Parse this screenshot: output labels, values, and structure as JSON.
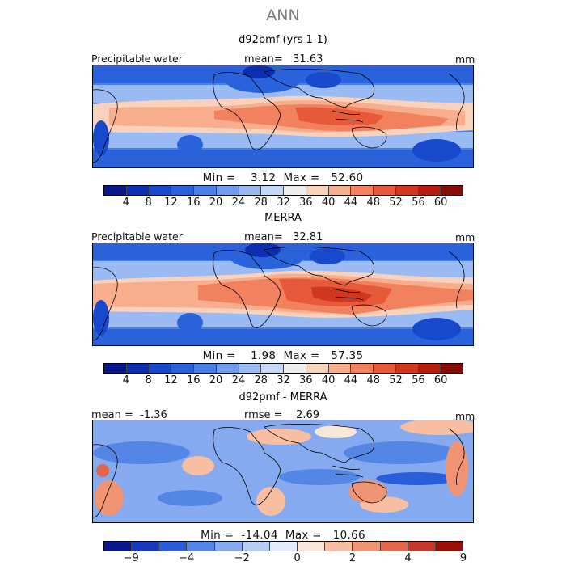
{
  "figure_title": "ANN",
  "panels": [
    {
      "title": "d92pmf (yrs 1-1)",
      "left_label": "Precipitable water",
      "center_label": "mean=   31.63",
      "right_label": "mm",
      "minmax": "Min =    3.12  Max =   52.60"
    },
    {
      "title": "MERRA",
      "left_label": "Precipitable water",
      "center_label": "mean=   32.81",
      "right_label": "mm",
      "minmax": "Min =    1.98  Max =   57.35"
    },
    {
      "title": "d92pmf - MERRA",
      "left_label": "mean =  -1.36",
      "center_label": "rmse =    2.69",
      "right_label": "mm",
      "minmax": "Min =  -14.04  Max =   10.66"
    }
  ],
  "colorbar_abs": {
    "colors": [
      "#08188c",
      "#0b2fb0",
      "#1848cc",
      "#2a62dc",
      "#4a80e6",
      "#729cee",
      "#9abaf4",
      "#c4d8f8",
      "#eeeeec",
      "#f9d2bd",
      "#f8ad8c",
      "#f2825f",
      "#e65a3a",
      "#d1361f",
      "#b41c10",
      "#860c04"
    ],
    "labels": [
      "4",
      "8",
      "12",
      "16",
      "20",
      "24",
      "28",
      "32",
      "36",
      "40",
      "44",
      "48",
      "52",
      "56",
      "60"
    ]
  },
  "colorbar_diff": {
    "colors": [
      "#08188c",
      "#1538bc",
      "#2a5ed8",
      "#5486e6",
      "#86aaf0",
      "#b6cef6",
      "#e2ecfa",
      "#fbe6da",
      "#f8bea2",
      "#f09474",
      "#e2664a",
      "#c8382a",
      "#9a1006"
    ],
    "labels": [
      {
        "text": "−9",
        "pos": 1
      },
      {
        "text": "−4",
        "pos": 3
      },
      {
        "text": "−2",
        "pos": 5
      },
      {
        "text": "0",
        "pos": 7
      },
      {
        "text": "2",
        "pos": 9
      },
      {
        "text": "4",
        "pos": 11
      },
      {
        "text": "9",
        "pos": 13
      }
    ]
  }
}
